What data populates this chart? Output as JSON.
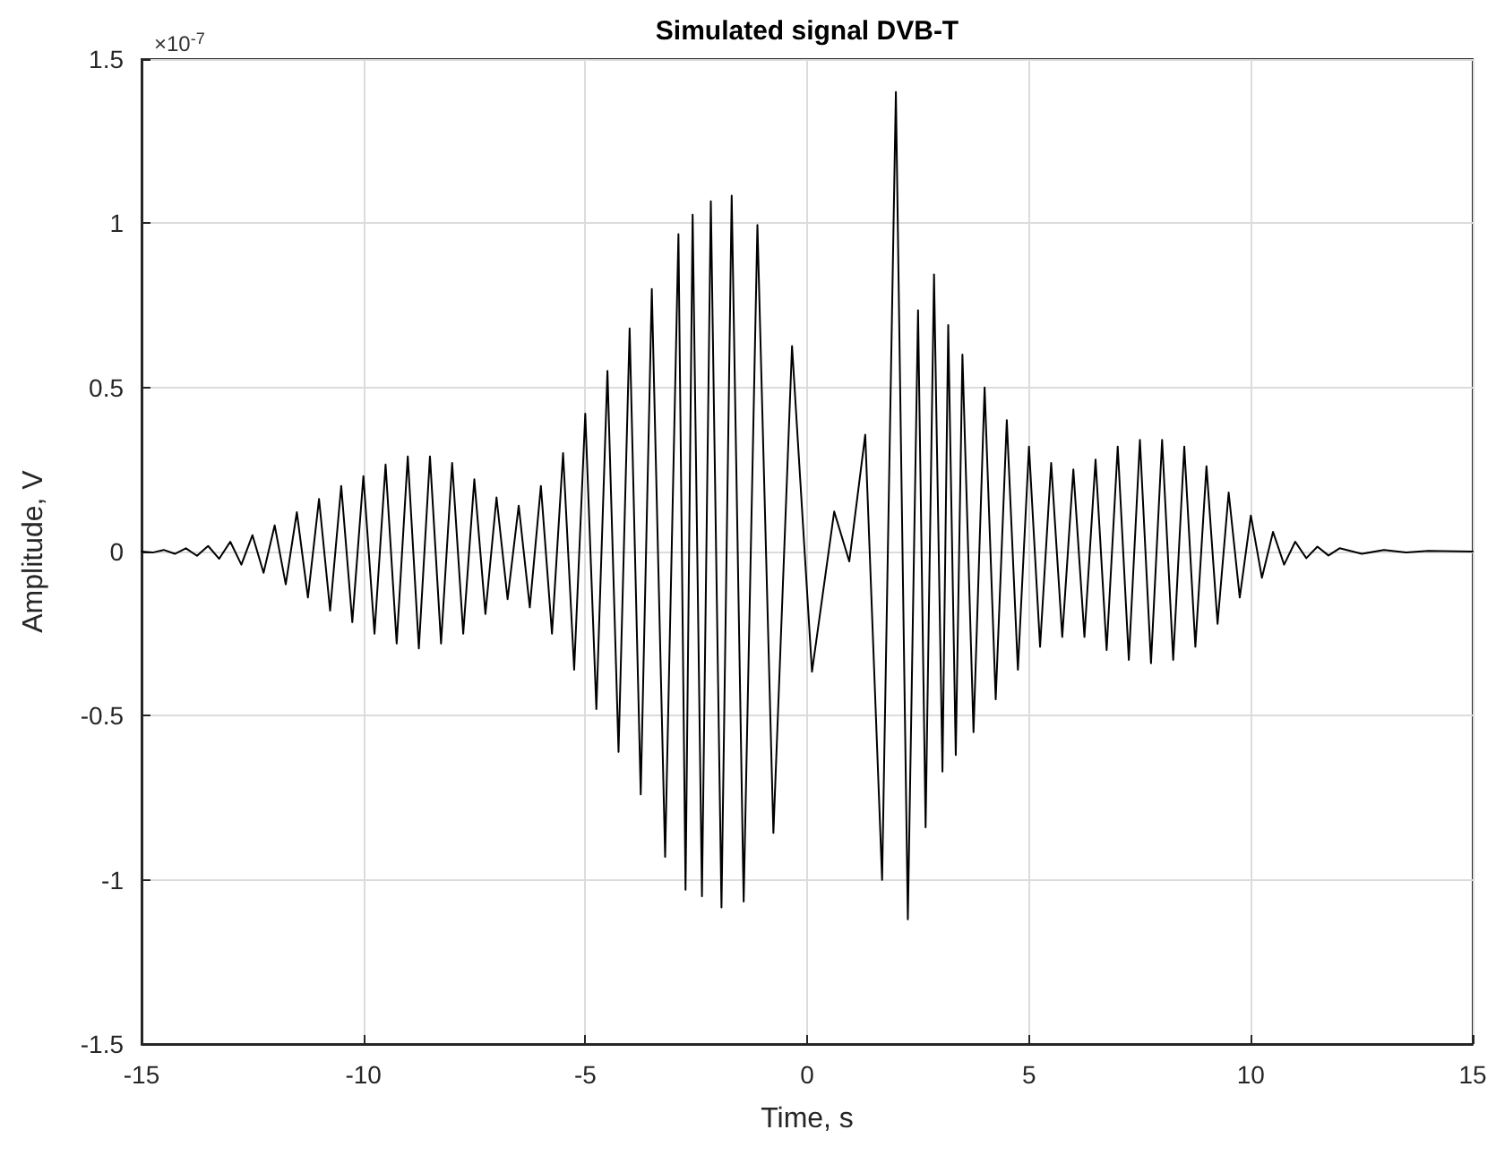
{
  "chart_data": {
    "type": "line",
    "title": "Simulated signal DVB-T",
    "xlabel": "Time, s",
    "ylabel": "Amplitude, V",
    "annotations": [
      "×10$^{-7}$"
    ],
    "series": [
      {
        "color": "#000000",
        "x": [
          -15,
          -14.75,
          -14.5,
          -14.25,
          -14,
          -13.75,
          -13.5,
          -13.25,
          -13,
          -12.75,
          -12.5,
          -12.25,
          -12,
          -11.75,
          -11.5,
          -11.25,
          -11,
          -10.75,
          -10.5,
          -10.25,
          -10,
          -9.75,
          -9.5,
          -9.25,
          -9,
          -8.75,
          -8.5,
          -8.25,
          -8,
          -7.75,
          -7.5,
          -7.25,
          -7,
          -6.75,
          -6.5,
          -6.25,
          -6,
          -5.75,
          -5.5,
          -5.25,
          -5,
          -4.75,
          -4.5,
          -4.25,
          -4,
          -3.75,
          -3.5,
          -3.2,
          -2.9,
          -2.74,
          -2.58,
          -2.37,
          -2.17,
          -1.93,
          -1.7,
          -1.43,
          -1.12,
          -0.76,
          -0.34,
          0.11,
          0.61,
          0.95,
          1.31,
          1.69,
          2.0,
          2.27,
          2.5,
          2.67,
          2.86,
          3.05,
          3.18,
          3.35,
          3.5,
          3.75,
          4,
          4.25,
          4.5,
          4.75,
          5,
          5.25,
          5.5,
          5.75,
          6,
          6.25,
          6.5,
          6.75,
          7,
          7.25,
          7.5,
          7.75,
          8,
          8.25,
          8.5,
          8.75,
          9,
          9.25,
          9.5,
          9.75,
          10,
          10.25,
          10.5,
          10.75,
          11,
          11.25,
          11.5,
          11.75,
          12,
          12.5,
          13,
          13.5,
          14,
          15
        ],
        "values": [
          0,
          -0.003,
          0.005,
          -0.007,
          0.01,
          -0.013,
          0.017,
          -0.022,
          0.03,
          -0.04,
          0.05,
          -0.065,
          0.08,
          -0.1,
          0.12,
          -0.14,
          0.16,
          -0.18,
          0.2,
          -0.215,
          0.23,
          -0.25,
          0.265,
          -0.28,
          0.29,
          -0.295,
          0.29,
          -0.28,
          0.27,
          -0.25,
          0.22,
          -0.19,
          0.165,
          -0.145,
          0.14,
          -0.17,
          0.2,
          -0.25,
          0.3,
          -0.36,
          0.42,
          -0.48,
          0.55,
          -0.61,
          0.68,
          -0.74,
          0.8,
          -0.93,
          0.967,
          -1.03,
          1.026,
          -1.05,
          1.067,
          -1.084,
          1.084,
          -1.066,
          0.995,
          -0.857,
          0.626,
          -0.366,
          0.122,
          -0.03,
          0.356,
          -1.0,
          1.4,
          -1.12,
          0.735,
          -0.84,
          0.844,
          -0.67,
          0.69,
          -0.62,
          0.6,
          -0.55,
          0.5,
          -0.45,
          0.4,
          -0.36,
          0.32,
          -0.29,
          0.27,
          -0.26,
          0.25,
          -0.26,
          0.28,
          -0.3,
          0.32,
          -0.33,
          0.34,
          -0.34,
          0.34,
          -0.33,
          0.32,
          -0.29,
          0.26,
          -0.22,
          0.18,
          -0.14,
          0.11,
          -0.08,
          0.06,
          -0.04,
          0.03,
          -0.02,
          0.015,
          -0.012,
          0.01,
          -0.007,
          0.005,
          -0.003,
          0.002,
          0
        ]
      }
    ],
    "xlim": [
      -15,
      15
    ],
    "xticks": [
      -15,
      -10,
      -5,
      0,
      5,
      10,
      15
    ],
    "ylim": [
      -1.5,
      1.5
    ],
    "yticks": [
      -1.5,
      -1,
      -0.5,
      0,
      0.5,
      1,
      1.5
    ],
    "grid": true,
    "marker": "none",
    "line_style": "solid"
  }
}
